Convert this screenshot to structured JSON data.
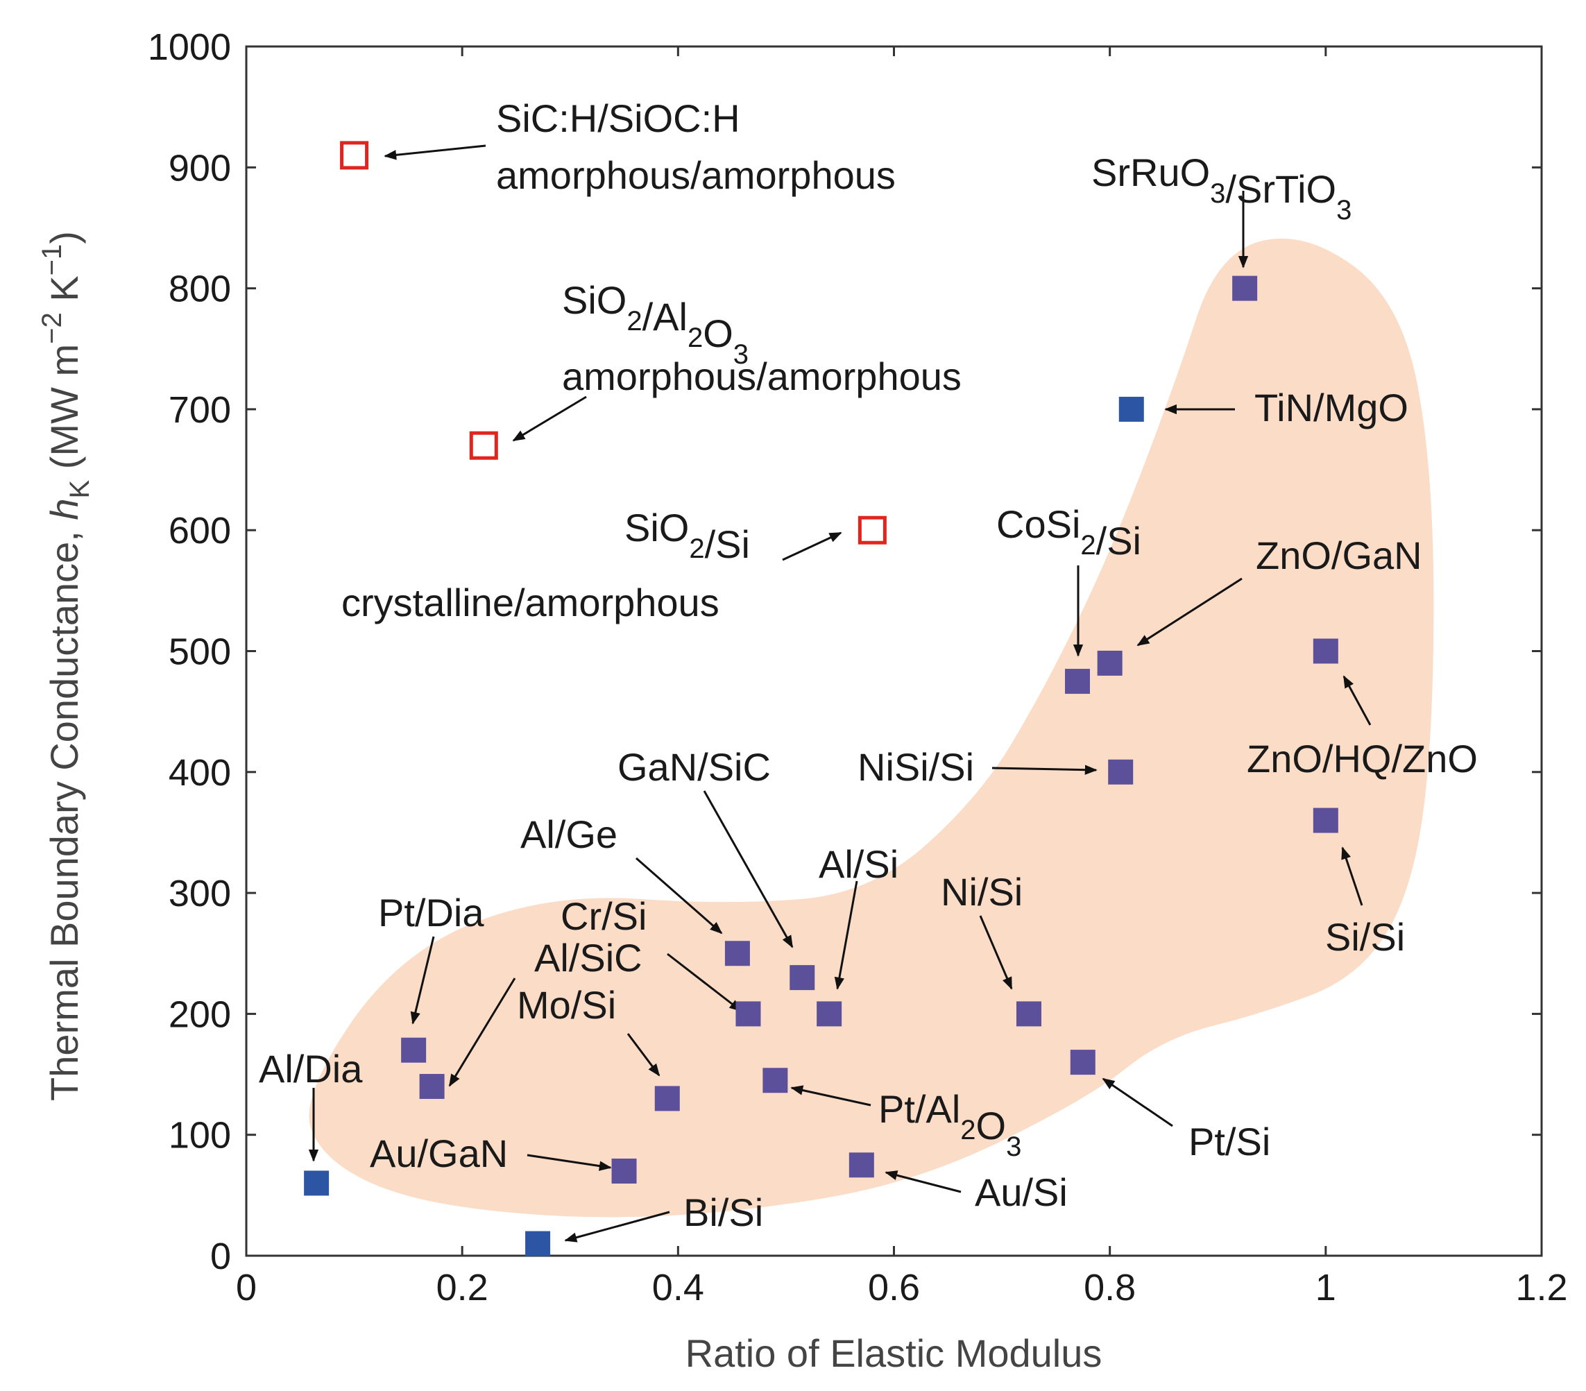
{
  "chart_data": {
    "type": "scatter",
    "title": "",
    "xlabel": "Ratio of Elastic Modulus",
    "ylabel_main": "Thermal Boundary Conductance, ",
    "ylabel_symbol": "h",
    "ylabel_symbol_sub": "K",
    "ylabel_units": {
      "open": " (MW m",
      "exp1": "−2",
      "mid": " K",
      "exp2": "−1",
      "close": ")"
    },
    "xlim": [
      0,
      1.2
    ],
    "ylim": [
      0,
      1000
    ],
    "xticks": [
      0,
      0.2,
      0.4,
      0.6,
      0.8,
      1,
      1.2
    ],
    "xtick_labels": [
      "0",
      "0.2",
      "0.4",
      "0.6",
      "0.8",
      "1",
      "1.2"
    ],
    "yticks": [
      0,
      100,
      200,
      300,
      400,
      500,
      600,
      700,
      800,
      900,
      1000
    ],
    "ytick_labels": [
      "0",
      "100",
      "200",
      "300",
      "400",
      "500",
      "600",
      "700",
      "800",
      "900",
      "1000"
    ],
    "grid": false,
    "colors": {
      "crystalline_purple": "#5b5099",
      "crystalline_blue": "#2c55a3",
      "amorphous_red": "#e0251f",
      "highlight": "#fbdcc6",
      "axis": "#333333"
    },
    "series": [
      {
        "style": "open-red",
        "points": [
          {
            "x": 0.1,
            "y": 910
          },
          {
            "x": 0.22,
            "y": 670
          },
          {
            "x": 0.58,
            "y": 600
          }
        ]
      },
      {
        "style": "filled-blue",
        "points": [
          {
            "x": 0.065,
            "y": 60
          },
          {
            "x": 0.27,
            "y": 10
          },
          {
            "x": 0.82,
            "y": 700
          }
        ]
      },
      {
        "style": "filled-purple",
        "points": [
          {
            "x": 0.155,
            "y": 170
          },
          {
            "x": 0.172,
            "y": 140
          },
          {
            "x": 0.35,
            "y": 70
          },
          {
            "x": 0.39,
            "y": 130
          },
          {
            "x": 0.455,
            "y": 250
          },
          {
            "x": 0.465,
            "y": 200
          },
          {
            "x": 0.49,
            "y": 145
          },
          {
            "x": 0.515,
            "y": 230
          },
          {
            "x": 0.54,
            "y": 200
          },
          {
            "x": 0.57,
            "y": 75
          },
          {
            "x": 0.725,
            "y": 200
          },
          {
            "x": 0.77,
            "y": 475
          },
          {
            "x": 0.775,
            "y": 160
          },
          {
            "x": 0.8,
            "y": 490
          },
          {
            "x": 0.81,
            "y": 400
          },
          {
            "x": 0.925,
            "y": 800
          },
          {
            "x": 1.0,
            "y": 500
          },
          {
            "x": 1.0,
            "y": 360
          }
        ]
      }
    ],
    "annotations": [
      {
        "id": "sic-h",
        "lines": [
          [
            {
              "t": "SiC:H/SiOC:H"
            }
          ],
          [
            {
              "t": "amorphous/amorphous"
            }
          ]
        ]
      },
      {
        "id": "sio2-al2o3",
        "lines": [
          [
            {
              "t": "SiO"
            },
            {
              "t": "2",
              "s": 1
            },
            {
              "t": "/Al"
            },
            {
              "t": "2",
              "s": 1
            },
            {
              "t": "O"
            },
            {
              "t": "3",
              "s": 1
            }
          ],
          [
            {
              "t": "amorphous/amorphous"
            }
          ]
        ]
      },
      {
        "id": "sio2-si",
        "lines": [
          [
            {
              "t": "SiO"
            },
            {
              "t": "2",
              "s": 1
            },
            {
              "t": "/Si"
            }
          ],
          [
            {
              "t": "crystalline/amorphous"
            }
          ]
        ]
      },
      {
        "id": "srruo3",
        "lines": [
          [
            {
              "t": "SrRuO"
            },
            {
              "t": "3",
              "s": 1
            },
            {
              "t": "/SrTiO"
            },
            {
              "t": "3",
              "s": 1
            }
          ]
        ]
      },
      {
        "id": "tin-mgo",
        "lines": [
          [
            {
              "t": "TiN/MgO"
            }
          ]
        ]
      },
      {
        "id": "cosi2",
        "lines": [
          [
            {
              "t": "CoSi"
            },
            {
              "t": "2",
              "s": 1
            },
            {
              "t": "/Si"
            }
          ]
        ]
      },
      {
        "id": "zno-gan",
        "lines": [
          [
            {
              "t": "ZnO/GaN"
            }
          ]
        ]
      },
      {
        "id": "zno-hq",
        "lines": [
          [
            {
              "t": "ZnO/HQ/ZnO"
            }
          ]
        ]
      },
      {
        "id": "nisi-si",
        "lines": [
          [
            {
              "t": "NiSi/Si"
            }
          ]
        ]
      },
      {
        "id": "gan-sic",
        "lines": [
          [
            {
              "t": "GaN/SiC"
            }
          ]
        ]
      },
      {
        "id": "al-ge",
        "lines": [
          [
            {
              "t": "Al/Ge"
            }
          ]
        ]
      },
      {
        "id": "al-si",
        "lines": [
          [
            {
              "t": "Al/Si"
            }
          ]
        ]
      },
      {
        "id": "ni-si",
        "lines": [
          [
            {
              "t": "Ni/Si"
            }
          ]
        ]
      },
      {
        "id": "si-si",
        "lines": [
          [
            {
              "t": "Si/Si"
            }
          ]
        ]
      },
      {
        "id": "pt-dia",
        "lines": [
          [
            {
              "t": "Pt/Dia"
            }
          ]
        ]
      },
      {
        "id": "cr-si",
        "lines": [
          [
            {
              "t": "Cr/Si"
            }
          ]
        ]
      },
      {
        "id": "al-sic",
        "lines": [
          [
            {
              "t": "Al/SiC"
            }
          ]
        ]
      },
      {
        "id": "mo-si",
        "lines": [
          [
            {
              "t": "Mo/Si"
            }
          ]
        ]
      },
      {
        "id": "al-dia",
        "lines": [
          [
            {
              "t": "Al/Dia"
            }
          ]
        ]
      },
      {
        "id": "pt-al2o3",
        "lines": [
          [
            {
              "t": "Pt/Al"
            },
            {
              "t": "2",
              "s": 1
            },
            {
              "t": "O"
            },
            {
              "t": "3",
              "s": 1
            }
          ]
        ]
      },
      {
        "id": "pt-si",
        "lines": [
          [
            {
              "t": "Pt/Si"
            }
          ]
        ]
      },
      {
        "id": "au-gan",
        "lines": [
          [
            {
              "t": "Au/GaN"
            }
          ]
        ]
      },
      {
        "id": "au-si",
        "lines": [
          [
            {
              "t": "Au/Si"
            }
          ]
        ]
      },
      {
        "id": "bi-si",
        "lines": [
          [
            {
              "t": "Bi/Si"
            }
          ]
        ]
      }
    ]
  }
}
